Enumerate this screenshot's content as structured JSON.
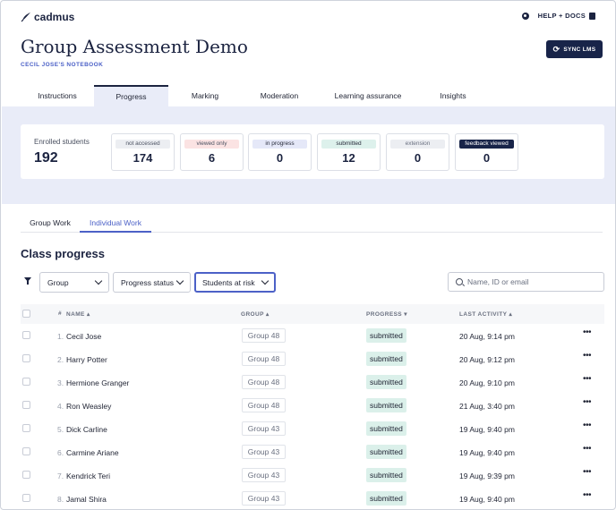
{
  "header": {
    "brand": "cadmus",
    "help_label": "HELP + DOCS",
    "page_title": "Group Assessment Demo",
    "notebook": "CECIL JOSE'S NOTEBOOK",
    "sync_label": "SYNC LMS"
  },
  "tabs": [
    {
      "label": "Instructions"
    },
    {
      "label": "Progress"
    },
    {
      "label": "Marking"
    },
    {
      "label": "Moderation"
    },
    {
      "label": "Learning assurance"
    },
    {
      "label": "Insights"
    }
  ],
  "enrolled": {
    "label": "Enrolled students",
    "value": "192"
  },
  "stats": [
    {
      "label": "not accessed",
      "value": "174",
      "bg": "#eceef2",
      "fg": "#4a5060"
    },
    {
      "label": "viewed only",
      "value": "6",
      "bg": "#fbe3e3",
      "fg": "#4a5060"
    },
    {
      "label": "in progress",
      "value": "0",
      "bg": "#e5e8f8",
      "fg": "#1f2333"
    },
    {
      "label": "submitted",
      "value": "12",
      "bg": "#ddf1ec",
      "fg": "#1f2333"
    },
    {
      "label": "extension",
      "value": "0",
      "bg": "#eceef2",
      "fg": "#6a7080"
    },
    {
      "label": "feedback viewed",
      "value": "0",
      "bg": "#182449",
      "fg": "#ffffff"
    }
  ],
  "subtabs": [
    {
      "label": "Group Work"
    },
    {
      "label": "Individual Work"
    }
  ],
  "section_title": "Class progress",
  "filters": {
    "group": "Group",
    "status": "Progress status",
    "risk": "Students at risk",
    "search_placeholder": "Name, ID or email"
  },
  "table": {
    "col_num": "#",
    "col_name": "NAME",
    "col_group": "GROUP",
    "col_progress": "PROGRESS",
    "col_activity": "LAST ACTIVITY",
    "sort_asc": "▴",
    "sort_desc": "▾",
    "rows": [
      {
        "num": "1.",
        "name": "Cecil Jose",
        "group": "Group 48",
        "progress": "submitted",
        "activity": "20 Aug, 9:14 pm"
      },
      {
        "num": "2.",
        "name": "Harry Potter",
        "group": "Group 48",
        "progress": "submitted",
        "activity": "20 Aug, 9:12 pm"
      },
      {
        "num": "3.",
        "name": "Hermione Granger",
        "group": "Group 48",
        "progress": "submitted",
        "activity": "20 Aug, 9:10 pm"
      },
      {
        "num": "4.",
        "name": "Ron Weasley",
        "group": "Group 48",
        "progress": "submitted",
        "activity": "21 Aug, 3:40 pm"
      },
      {
        "num": "5.",
        "name": "Dick Carline",
        "group": "Group 43",
        "progress": "submitted",
        "activity": "19 Aug, 9:40 pm"
      },
      {
        "num": "6.",
        "name": "Carmine Ariane",
        "group": "Group 43",
        "progress": "submitted",
        "activity": "19 Aug, 9:40 pm"
      },
      {
        "num": "7.",
        "name": "Kendrick Teri",
        "group": "Group 43",
        "progress": "submitted",
        "activity": "19 Aug, 9:39 pm"
      },
      {
        "num": "8.",
        "name": "Jamal Shira",
        "group": "Group 43",
        "progress": "submitted",
        "activity": "19 Aug, 9:40 pm"
      }
    ]
  },
  "colors": {
    "navy": "#182449",
    "accent": "#4c61c7",
    "band": "#e9ecf8",
    "submitted_bg": "#dbf0ea"
  }
}
